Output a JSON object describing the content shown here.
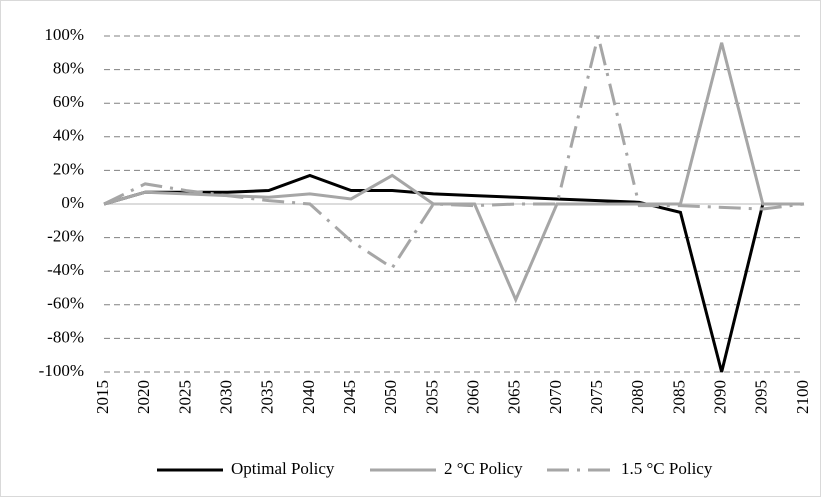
{
  "chart_data": {
    "type": "line",
    "categories": [
      "2015",
      "2020",
      "2025",
      "2030",
      "2035",
      "2040",
      "2045",
      "2050",
      "2055",
      "2060",
      "2065",
      "2070",
      "2075",
      "2080",
      "2085",
      "2090",
      "2095",
      "2100"
    ],
    "series": [
      {
        "name": "Optimal Policy",
        "color": "#000000",
        "dash": "solid",
        "values": [
          0,
          7,
          7,
          7,
          8,
          17,
          8,
          8,
          6,
          5,
          4,
          3,
          2,
          1,
          -5,
          -100,
          0,
          0
        ]
      },
      {
        "name": "2 °C Policy",
        "color": "#a6a6a6",
        "dash": "solid",
        "values": [
          0,
          7,
          6,
          5,
          4,
          6,
          3,
          17,
          0,
          0,
          -57,
          0,
          0,
          0,
          0,
          96,
          0,
          0
        ]
      },
      {
        "name": "1.5 °C Policy",
        "color": "#a6a6a6",
        "dash": "dashdot",
        "values": [
          0,
          12,
          8,
          5,
          2,
          0,
          -22,
          -38,
          0,
          -1,
          0,
          0,
          100,
          -1,
          -1,
          -2,
          -3,
          0
        ]
      }
    ],
    "ylim": [
      -100,
      100
    ],
    "yticks": [
      {
        "value": -100,
        "label": "-100%"
      },
      {
        "value": -80,
        "label": "-80%"
      },
      {
        "value": -60,
        "label": "-60%"
      },
      {
        "value": -40,
        "label": "-40%"
      },
      {
        "value": -20,
        "label": "-20%"
      },
      {
        "value": 0,
        "label": "0%"
      },
      {
        "value": 20,
        "label": "20%"
      },
      {
        "value": 40,
        "label": "40%"
      },
      {
        "value": 60,
        "label": "60%"
      },
      {
        "value": 80,
        "label": "80%"
      },
      {
        "value": 100,
        "label": "100%"
      }
    ],
    "grid": true,
    "legend": "bottom"
  }
}
